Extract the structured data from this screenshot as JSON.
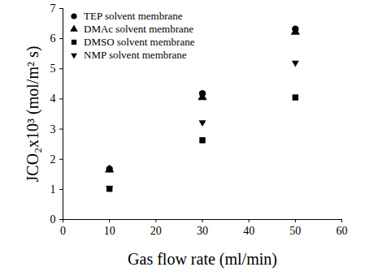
{
  "chart_data": {
    "type": "scatter",
    "x_label": "Gas flow rate (ml/min)",
    "y_label": "JCO₂x10³ (mol/m² s)",
    "x": [
      10,
      30,
      50
    ],
    "series": [
      {
        "name": "TEP solvent membrane",
        "color": "#000000",
        "marker": "circle",
        "values": [
          1.68,
          4.18,
          6.32
        ]
      },
      {
        "name": "DMAc solvent membrane",
        "color": "#000000",
        "marker": "triangle-up",
        "values": [
          1.65,
          4.05,
          6.22
        ]
      },
      {
        "name": "DMSO solvent membrane",
        "color": "#000000",
        "marker": "square",
        "values": [
          1.02,
          2.63,
          4.05
        ]
      },
      {
        "name": "NMP solvent membrane",
        "color": "#000000",
        "marker": "triangle-down",
        "values": [
          1.05,
          3.22,
          5.2
        ]
      }
    ],
    "xlim": [
      0,
      60
    ],
    "xticks": [
      0,
      10,
      20,
      30,
      40,
      50,
      60
    ],
    "ylim": [
      0,
      7
    ],
    "yticks": [
      0,
      1,
      2,
      3,
      4,
      5,
      6,
      7
    ],
    "legend": "upper left"
  }
}
